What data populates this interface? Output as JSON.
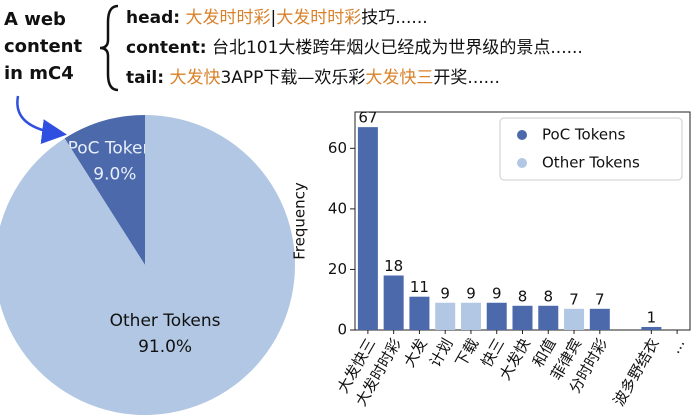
{
  "annotation": {
    "label_lines": [
      "A web",
      "content",
      "in mC4"
    ],
    "lines": [
      {
        "label": "head:",
        "segments": [
          {
            "text": "大发时时彩",
            "color": "#d9822b"
          },
          {
            "text": "|",
            "color": "#111111"
          },
          {
            "text": "大发时时彩",
            "color": "#d9822b"
          },
          {
            "text": "技巧......",
            "color": "#111111"
          }
        ]
      },
      {
        "label": "content:",
        "segments": [
          {
            "text": "台北101大楼跨年烟火已经成为世界级的景点......",
            "color": "#111111"
          }
        ]
      },
      {
        "label": "tail:",
        "segments": [
          {
            "text": "大发快",
            "color": "#d9822b"
          },
          {
            "text": "3APP下载—欢乐彩",
            "color": "#111111"
          },
          {
            "text": "大发快三",
            "color": "#d9822b"
          },
          {
            "text": "开奖......",
            "color": "#111111"
          }
        ]
      }
    ]
  },
  "chart_data": [
    {
      "type": "pie",
      "categories": [
        "PoC Tokens",
        "Other Tokens"
      ],
      "values": [
        9.0,
        91.0
      ],
      "value_labels": [
        "9.0%",
        "91.0%"
      ],
      "colors": [
        "#4b69ab",
        "#b2c7e3"
      ],
      "label_colors": [
        "#e8eefa",
        "#111111"
      ]
    },
    {
      "type": "bar",
      "ylabel": "Frequency",
      "categories": [
        "大发快三",
        "大发时时彩",
        "大发",
        "计划",
        "下载",
        "快三",
        "大发快",
        "和值",
        "菲律宾",
        "分时时彩",
        null,
        "波多野结衣",
        "..."
      ],
      "series": [
        {
          "name": "PoC Tokens",
          "color": "#4b69ab",
          "values": [
            67,
            18,
            11,
            null,
            null,
            9,
            8,
            8,
            null,
            7,
            null,
            1,
            null
          ]
        },
        {
          "name": "Other Tokens",
          "color": "#b2c7e3",
          "values": [
            null,
            null,
            null,
            9,
            9,
            null,
            null,
            null,
            7,
            null,
            null,
            null,
            null
          ]
        }
      ],
      "ylim": [
        0,
        72
      ],
      "yticks": [
        0,
        20,
        40,
        60
      ],
      "legend": "upper right",
      "data_labels": true
    }
  ]
}
